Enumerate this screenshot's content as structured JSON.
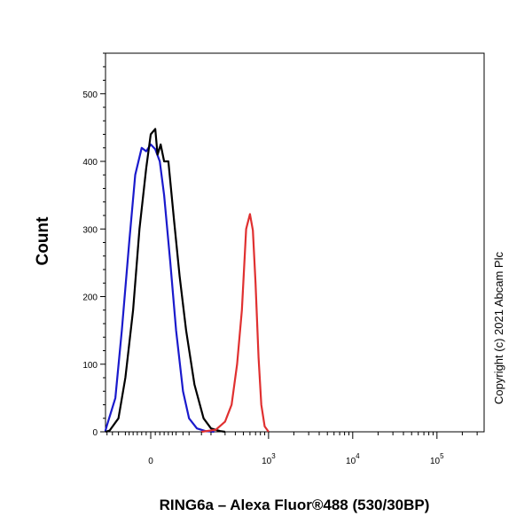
{
  "chart_data": {
    "type": "line",
    "title": "",
    "xlabel": "RING6a – Alexa Fluor®488 (530/30BP)",
    "ylabel": "Count",
    "x_scale": "biexponential",
    "xlim": [
      -300,
      200000
    ],
    "ylim": [
      0,
      560
    ],
    "y_ticks": [
      0,
      100,
      200,
      300,
      400,
      500
    ],
    "y_tick_labels": [
      "0",
      "100",
      "200",
      "300",
      "400",
      "500"
    ],
    "x_ticks": [
      {
        "value": 0,
        "base": "0",
        "exp": ""
      },
      {
        "value": 1000,
        "base": "10",
        "exp": "3"
      },
      {
        "value": 10000,
        "base": "10",
        "exp": "4"
      },
      {
        "value": 100000,
        "base": "10",
        "exp": "5"
      }
    ],
    "grid": false,
    "legend": "none",
    "series": [
      {
        "color": "#1a1acc",
        "x": [
          -300,
          -160,
          -120,
          -90,
          -70,
          -50,
          -35,
          -20,
          -10,
          0,
          10,
          20,
          30,
          45,
          60,
          80,
          100,
          130,
          170,
          220
        ],
        "y": [
          0,
          2,
          10,
          50,
          150,
          280,
          380,
          420,
          415,
          425,
          418,
          400,
          350,
          250,
          150,
          60,
          20,
          5,
          1,
          0
        ]
      },
      {
        "color": "#000000",
        "x": [
          -300,
          -110,
          -80,
          -60,
          -40,
          -25,
          -10,
          0,
          10,
          15,
          22,
          30,
          40,
          55,
          70,
          90,
          120,
          160,
          200,
          260,
          300
        ],
        "y": [
          0,
          2,
          20,
          80,
          180,
          300,
          390,
          440,
          448,
          410,
          425,
          400,
          400,
          310,
          230,
          150,
          70,
          20,
          5,
          1,
          0
        ]
      },
      {
        "color": "#e03030",
        "x": [
          150,
          230,
          300,
          360,
          420,
          480,
          540,
          600,
          650,
          700,
          760,
          820,
          900,
          1000
        ],
        "y": [
          0,
          3,
          15,
          40,
          100,
          180,
          300,
          322,
          298,
          220,
          110,
          40,
          8,
          0
        ]
      }
    ]
  },
  "copyright": "Copyright (c) 2021 Abcam Plc"
}
